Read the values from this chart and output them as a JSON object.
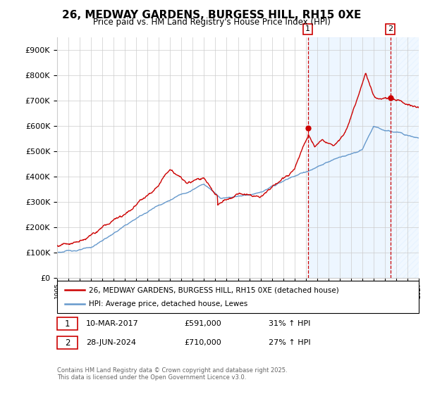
{
  "title": "26, MEDWAY GARDENS, BURGESS HILL, RH15 0XE",
  "subtitle": "Price paid vs. HM Land Registry's House Price Index (HPI)",
  "legend_line1": "26, MEDWAY GARDENS, BURGESS HILL, RH15 0XE (detached house)",
  "legend_line2": "HPI: Average price, detached house, Lewes",
  "annotation1_date": "10-MAR-2017",
  "annotation1_price": "£591,000",
  "annotation1_hpi": "31% ↑ HPI",
  "annotation2_date": "28-JUN-2024",
  "annotation2_price": "£710,000",
  "annotation2_hpi": "27% ↑ HPI",
  "footer": "Contains HM Land Registry data © Crown copyright and database right 2025.\nThis data is licensed under the Open Government Licence v3.0.",
  "red_color": "#cc0000",
  "blue_color": "#6699cc",
  "shade_color": "#ddeeff",
  "grid_color": "#cccccc",
  "marker1_year": 2017.19,
  "marker2_year": 2024.49,
  "ylim_min": 0,
  "ylim_max": 950000,
  "xmin": 1995,
  "xmax": 2027
}
